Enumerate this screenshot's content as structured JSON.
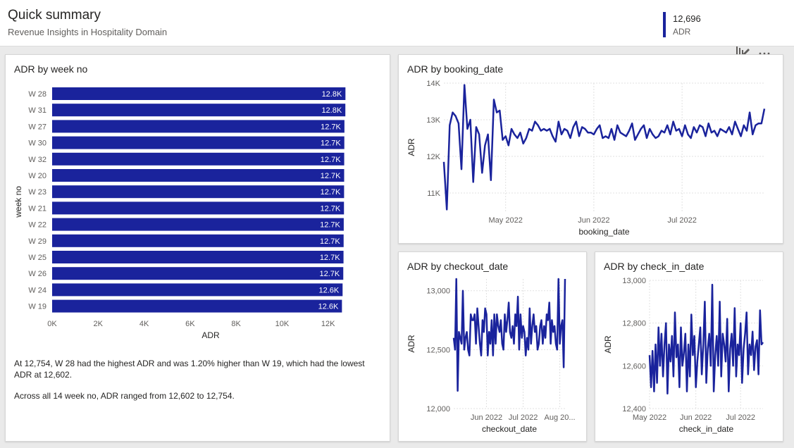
{
  "header": {
    "title": "Quick summary",
    "subtitle": "Revenue Insights in Hospitality Domain",
    "kpi_value": "12,696",
    "kpi_label": "ADR"
  },
  "toolbar": {
    "focus_icon": "focus-mode-icon",
    "more_icon": "more-options-icon"
  },
  "colors": {
    "series": "#1a239c",
    "grid": "#e1e1e1",
    "axis_text": "#605e5c"
  },
  "insights": {
    "line1": "At 12,754, W 28 had the highest ADR and was 1.20% higher than W 19, which had the lowest ADR at 12,602.",
    "line2": "Across all 14 week no, ADR ranged from 12,602 to 12,754."
  },
  "chart_data": [
    {
      "type": "bar",
      "orientation": "horizontal",
      "title": "ADR by week no",
      "categories": [
        "W 28",
        "W 31",
        "W 27",
        "W 30",
        "W 32",
        "W 20",
        "W 23",
        "W 21",
        "W 22",
        "W 29",
        "W 25",
        "W 26",
        "W 24",
        "W 19"
      ],
      "values": [
        12754,
        12750,
        12710,
        12705,
        12700,
        12698,
        12695,
        12690,
        12680,
        12675,
        12670,
        12660,
        12630,
        12602
      ],
      "data_labels": [
        "12.8K",
        "12.8K",
        "12.7K",
        "12.7K",
        "12.7K",
        "12.7K",
        "12.7K",
        "12.7K",
        "12.7K",
        "12.7K",
        "12.7K",
        "12.7K",
        "12.6K",
        "12.6K"
      ],
      "xlabel": "ADR",
      "ylabel": "week no",
      "xlim": [
        0,
        13000
      ],
      "xticks": [
        0,
        2000,
        4000,
        6000,
        8000,
        10000,
        12000
      ],
      "xtick_labels": [
        "0K",
        "2K",
        "4K",
        "6K",
        "8K",
        "10K",
        "12K"
      ]
    },
    {
      "type": "line",
      "title": "ADR by booking_date",
      "xlabel": "booking_date",
      "ylabel": "ADR",
      "ylim": [
        10500,
        14000
      ],
      "yticks": [
        11000,
        12000,
        13000,
        14000
      ],
      "ytick_labels": [
        "11K",
        "12K",
        "13K",
        "14K"
      ],
      "xticks": [
        "May 2022",
        "Jun 2022",
        "Jul 2022"
      ],
      "xtick_pos": [
        21,
        51,
        81
      ],
      "values": [
        11850,
        10550,
        12850,
        13200,
        13100,
        12900,
        11650,
        13950,
        12750,
        13000,
        11300,
        12800,
        12600,
        11550,
        12300,
        12600,
        11350,
        13550,
        13200,
        13250,
        12450,
        12550,
        12300,
        12750,
        12600,
        12500,
        12650,
        12350,
        12500,
        12750,
        12700,
        12950,
        12850,
        12700,
        12750,
        12700,
        12750,
        12550,
        12400,
        12950,
        12600,
        12750,
        12700,
        12500,
        12800,
        12950,
        12550,
        12800,
        12750,
        12650,
        12650,
        12600,
        12750,
        12850,
        12500,
        12550,
        12500,
        12750,
        12450,
        12850,
        12650,
        12600,
        12550,
        12700,
        12900,
        12450,
        12600,
        12750,
        12850,
        12500,
        12750,
        12600,
        12500,
        12550,
        12700,
        12650,
        12850,
        12600,
        12950,
        12700,
        12750,
        12550,
        12850,
        12600,
        12500,
        12800,
        12650,
        12850,
        12800,
        12550,
        12900,
        12650,
        12700,
        12550,
        12750,
        12700,
        12650,
        12800,
        12600,
        12950,
        12750,
        12550,
        12850,
        12700,
        13200,
        12600,
        12850,
        12900,
        12900,
        13300
      ]
    },
    {
      "type": "line",
      "title": "ADR by checkout_date",
      "xlabel": "checkout_date",
      "ylabel": "ADR",
      "ylim": [
        12000,
        13100
      ],
      "yticks": [
        12000,
        12500,
        13000
      ],
      "ytick_labels": [
        "12,000",
        "12,500",
        "13,000"
      ],
      "xticks": [
        "Jun 2022",
        "Jul 2022",
        "Aug 20..."
      ],
      "xtick_pos": [
        25,
        53,
        81
      ],
      "values": [
        12600,
        12500,
        13100,
        12150,
        12650,
        12600,
        12550,
        13000,
        12500,
        12600,
        12650,
        12500,
        12450,
        12800,
        12750,
        12750,
        12800,
        12550,
        12850,
        12700,
        12550,
        12450,
        12750,
        12650,
        12850,
        12800,
        12450,
        12650,
        12550,
        12750,
        12450,
        12800,
        12550,
        12800,
        12700,
        12650,
        12750,
        12550,
        12500,
        12800,
        12650,
        12750,
        12900,
        12650,
        12600,
        12700,
        12550,
        12800,
        12700,
        12950,
        12500,
        12800,
        12600,
        12700,
        12650,
        12450,
        12600,
        12500,
        12850,
        12550,
        12700,
        12800,
        12650,
        12700,
        12500,
        12550,
        12700,
        12750,
        12550,
        12700,
        12600,
        12800,
        12750,
        12900,
        12550,
        12750,
        12650,
        12700,
        12550,
        12500,
        13100,
        12550,
        12700,
        12750,
        12350,
        13100
      ]
    },
    {
      "type": "line",
      "title": "ADR by check_in_date",
      "xlabel": "check_in_date",
      "ylabel": "ADR",
      "ylim": [
        12400,
        13000
      ],
      "yticks": [
        12400,
        12600,
        12800,
        13000
      ],
      "ytick_labels": [
        "12,400",
        "12,600",
        "12,800",
        "13,000"
      ],
      "xticks": [
        "May 2022",
        "Jun 2022",
        "Jul 2022"
      ],
      "xtick_pos": [
        0,
        31,
        61
      ],
      "values": [
        12650,
        12500,
        12670,
        12480,
        12700,
        12520,
        12780,
        12600,
        12750,
        12550,
        12700,
        12800,
        12470,
        12700,
        12620,
        12740,
        12550,
        12850,
        12640,
        12700,
        12500,
        12780,
        12600,
        12660,
        12750,
        12480,
        12700,
        12550,
        12840,
        12650,
        12740,
        12500,
        12620,
        12700,
        12780,
        12560,
        12700,
        12900,
        12520,
        12680,
        12750,
        12600,
        12980,
        12480,
        12650,
        12740,
        12600,
        12900,
        12550,
        12750,
        12700,
        12620,
        12820,
        12480,
        12680,
        12750,
        12600,
        12870,
        12550,
        12700,
        12650,
        12800,
        12520,
        12680,
        12750,
        12850,
        12560,
        12700,
        12650,
        12760,
        12580,
        12690,
        12720,
        12560,
        12860,
        12700,
        12710
      ]
    }
  ]
}
